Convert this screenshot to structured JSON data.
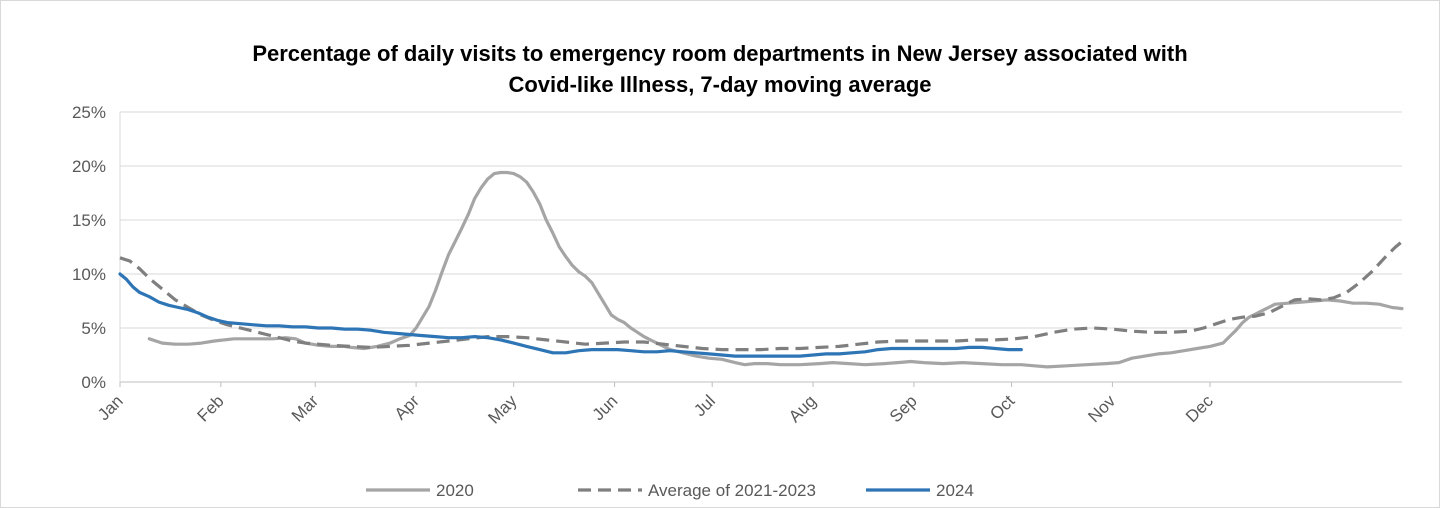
{
  "chart_data": {
    "type": "line",
    "title_line1": "Percentage of daily visits to emergency room departments in New Jersey associated with",
    "title_line2": "Covid-like Illness, 7-day moving average",
    "xlabel": "",
    "ylabel": "",
    "x_tick_labels": [
      "Jan",
      "Feb",
      "Mar",
      "Apr",
      "May",
      "Jun",
      "Jul",
      "Aug",
      "Sep",
      "Oct",
      "Nov",
      "Dec"
    ],
    "y_tick_labels": [
      "0%",
      "5%",
      "10%",
      "15%",
      "20%",
      "25%"
    ],
    "ylim": [
      0,
      25
    ],
    "xlim_day_of_year": [
      1,
      366
    ],
    "grid": "horizontal",
    "legend_position": "bottom",
    "series": [
      {
        "name": "2020",
        "style": "solid",
        "color": "#a5a5a5",
        "points": [
          [
            10,
            4.0
          ],
          [
            12,
            3.8
          ],
          [
            14,
            3.6
          ],
          [
            18,
            3.5
          ],
          [
            22,
            3.5
          ],
          [
            26,
            3.6
          ],
          [
            30,
            3.8
          ],
          [
            36,
            4.0
          ],
          [
            42,
            4.0
          ],
          [
            48,
            4.0
          ],
          [
            52,
            4.1
          ],
          [
            55,
            4.0
          ],
          [
            58,
            3.6
          ],
          [
            62,
            3.4
          ],
          [
            66,
            3.3
          ],
          [
            70,
            3.3
          ],
          [
            72,
            3.2
          ],
          [
            76,
            3.1
          ],
          [
            80,
            3.3
          ],
          [
            84,
            3.6
          ],
          [
            87,
            4.0
          ],
          [
            90,
            4.3
          ],
          [
            92,
            5.0
          ],
          [
            94,
            6.0
          ],
          [
            96,
            7.0
          ],
          [
            98,
            8.5
          ],
          [
            100,
            10.2
          ],
          [
            102,
            11.8
          ],
          [
            104,
            13.0
          ],
          [
            106,
            14.2
          ],
          [
            108,
            15.5
          ],
          [
            110,
            17.0
          ],
          [
            112,
            18.0
          ],
          [
            114,
            18.8
          ],
          [
            116,
            19.3
          ],
          [
            118,
            19.4
          ],
          [
            120,
            19.4
          ],
          [
            122,
            19.3
          ],
          [
            124,
            19.0
          ],
          [
            126,
            18.5
          ],
          [
            128,
            17.6
          ],
          [
            130,
            16.5
          ],
          [
            132,
            15.0
          ],
          [
            134,
            13.8
          ],
          [
            136,
            12.5
          ],
          [
            138,
            11.6
          ],
          [
            140,
            10.8
          ],
          [
            142,
            10.2
          ],
          [
            144,
            9.8
          ],
          [
            146,
            9.2
          ],
          [
            148,
            8.2
          ],
          [
            150,
            7.2
          ],
          [
            152,
            6.2
          ],
          [
            154,
            5.8
          ],
          [
            156,
            5.5
          ],
          [
            158,
            5.0
          ],
          [
            160,
            4.6
          ],
          [
            162,
            4.2
          ],
          [
            164,
            3.9
          ],
          [
            166,
            3.6
          ],
          [
            170,
            3.0
          ],
          [
            174,
            2.7
          ],
          [
            178,
            2.4
          ],
          [
            182,
            2.2
          ],
          [
            186,
            2.1
          ],
          [
            190,
            1.8
          ],
          [
            193,
            1.6
          ],
          [
            196,
            1.7
          ],
          [
            200,
            1.7
          ],
          [
            204,
            1.6
          ],
          [
            210,
            1.6
          ],
          [
            216,
            1.7
          ],
          [
            220,
            1.8
          ],
          [
            225,
            1.7
          ],
          [
            230,
            1.6
          ],
          [
            236,
            1.7
          ],
          [
            240,
            1.8
          ],
          [
            244,
            1.9
          ],
          [
            248,
            1.8
          ],
          [
            254,
            1.7
          ],
          [
            260,
            1.8
          ],
          [
            266,
            1.7
          ],
          [
            272,
            1.6
          ],
          [
            278,
            1.6
          ],
          [
            282,
            1.5
          ],
          [
            286,
            1.4
          ],
          [
            292,
            1.5
          ],
          [
            298,
            1.6
          ],
          [
            304,
            1.7
          ],
          [
            308,
            1.8
          ],
          [
            312,
            2.2
          ],
          [
            316,
            2.4
          ],
          [
            320,
            2.6
          ],
          [
            324,
            2.7
          ],
          [
            328,
            2.9
          ],
          [
            332,
            3.1
          ],
          [
            336,
            3.3
          ],
          [
            340,
            3.6
          ],
          [
            342,
            4.2
          ],
          [
            344,
            4.8
          ],
          [
            346,
            5.5
          ],
          [
            348,
            6.0
          ],
          [
            350,
            6.3
          ],
          [
            352,
            6.6
          ],
          [
            354,
            6.9
          ],
          [
            356,
            7.2
          ],
          [
            360,
            7.3
          ],
          [
            364,
            7.4
          ],
          [
            368,
            7.5
          ],
          [
            372,
            7.6
          ],
          [
            376,
            7.5
          ],
          [
            380,
            7.3
          ],
          [
            384,
            7.3
          ],
          [
            388,
            7.2
          ],
          [
            392,
            6.9
          ],
          [
            395,
            6.8
          ]
        ]
      },
      {
        "name": "Average of 2021-2023",
        "style": "dashed",
        "color": "#7f7f7f",
        "points": [
          [
            1,
            11.5
          ],
          [
            4,
            11.2
          ],
          [
            7,
            10.5
          ],
          [
            10,
            9.6
          ],
          [
            14,
            8.6
          ],
          [
            18,
            7.6
          ],
          [
            22,
            6.9
          ],
          [
            26,
            6.2
          ],
          [
            30,
            5.7
          ],
          [
            34,
            5.3
          ],
          [
            38,
            5.0
          ],
          [
            42,
            4.7
          ],
          [
            46,
            4.4
          ],
          [
            50,
            4.1
          ],
          [
            54,
            3.8
          ],
          [
            58,
            3.6
          ],
          [
            62,
            3.5
          ],
          [
            66,
            3.4
          ],
          [
            72,
            3.3
          ],
          [
            78,
            3.2
          ],
          [
            84,
            3.3
          ],
          [
            90,
            3.4
          ],
          [
            96,
            3.6
          ],
          [
            102,
            3.8
          ],
          [
            108,
            4.0
          ],
          [
            114,
            4.2
          ],
          [
            120,
            4.2
          ],
          [
            126,
            4.1
          ],
          [
            132,
            3.9
          ],
          [
            138,
            3.7
          ],
          [
            144,
            3.5
          ],
          [
            150,
            3.6
          ],
          [
            156,
            3.7
          ],
          [
            162,
            3.7
          ],
          [
            168,
            3.5
          ],
          [
            174,
            3.3
          ],
          [
            180,
            3.1
          ],
          [
            186,
            3.0
          ],
          [
            192,
            3.0
          ],
          [
            198,
            3.0
          ],
          [
            204,
            3.1
          ],
          [
            210,
            3.1
          ],
          [
            216,
            3.2
          ],
          [
            222,
            3.3
          ],
          [
            228,
            3.5
          ],
          [
            234,
            3.7
          ],
          [
            240,
            3.8
          ],
          [
            246,
            3.8
          ],
          [
            252,
            3.8
          ],
          [
            258,
            3.8
          ],
          [
            264,
            3.9
          ],
          [
            270,
            3.9
          ],
          [
            276,
            4.0
          ],
          [
            282,
            4.2
          ],
          [
            288,
            4.6
          ],
          [
            294,
            4.9
          ],
          [
            300,
            5.0
          ],
          [
            306,
            4.9
          ],
          [
            312,
            4.7
          ],
          [
            318,
            4.6
          ],
          [
            324,
            4.6
          ],
          [
            330,
            4.7
          ],
          [
            334,
            5.0
          ],
          [
            338,
            5.4
          ],
          [
            342,
            5.8
          ],
          [
            346,
            6.0
          ],
          [
            350,
            6.1
          ],
          [
            354,
            6.4
          ],
          [
            358,
            7.0
          ],
          [
            362,
            7.6
          ],
          [
            366,
            7.7
          ],
          [
            370,
            7.6
          ],
          [
            374,
            7.8
          ],
          [
            378,
            8.3
          ],
          [
            382,
            9.2
          ],
          [
            386,
            10.3
          ],
          [
            390,
            11.6
          ],
          [
            393,
            12.5
          ],
          [
            395,
            13.0
          ]
        ]
      },
      {
        "name": "2024",
        "style": "solid",
        "color": "#2e75b6",
        "points": [
          [
            1,
            10.0
          ],
          [
            3,
            9.5
          ],
          [
            5,
            8.8
          ],
          [
            7,
            8.3
          ],
          [
            10,
            7.9
          ],
          [
            13,
            7.4
          ],
          [
            16,
            7.1
          ],
          [
            19,
            6.9
          ],
          [
            22,
            6.7
          ],
          [
            25,
            6.4
          ],
          [
            28,
            6.0
          ],
          [
            31,
            5.7
          ],
          [
            34,
            5.5
          ],
          [
            38,
            5.4
          ],
          [
            42,
            5.3
          ],
          [
            46,
            5.2
          ],
          [
            50,
            5.2
          ],
          [
            54,
            5.1
          ],
          [
            58,
            5.1
          ],
          [
            62,
            5.0
          ],
          [
            66,
            5.0
          ],
          [
            70,
            4.9
          ],
          [
            74,
            4.9
          ],
          [
            78,
            4.8
          ],
          [
            82,
            4.6
          ],
          [
            86,
            4.5
          ],
          [
            90,
            4.4
          ],
          [
            94,
            4.3
          ],
          [
            98,
            4.2
          ],
          [
            102,
            4.1
          ],
          [
            106,
            4.1
          ],
          [
            110,
            4.2
          ],
          [
            114,
            4.1
          ],
          [
            118,
            3.9
          ],
          [
            122,
            3.6
          ],
          [
            126,
            3.3
          ],
          [
            130,
            3.0
          ],
          [
            134,
            2.7
          ],
          [
            138,
            2.7
          ],
          [
            142,
            2.9
          ],
          [
            146,
            3.0
          ],
          [
            150,
            3.0
          ],
          [
            154,
            3.0
          ],
          [
            158,
            2.9
          ],
          [
            162,
            2.8
          ],
          [
            166,
            2.8
          ],
          [
            170,
            2.9
          ],
          [
            174,
            2.8
          ],
          [
            178,
            2.7
          ],
          [
            182,
            2.6
          ],
          [
            186,
            2.5
          ],
          [
            190,
            2.4
          ],
          [
            194,
            2.4
          ],
          [
            198,
            2.4
          ],
          [
            202,
            2.4
          ],
          [
            206,
            2.4
          ],
          [
            210,
            2.4
          ],
          [
            214,
            2.5
          ],
          [
            218,
            2.6
          ],
          [
            222,
            2.6
          ],
          [
            226,
            2.7
          ],
          [
            230,
            2.8
          ],
          [
            234,
            3.0
          ],
          [
            238,
            3.1
          ],
          [
            242,
            3.1
          ],
          [
            246,
            3.1
          ],
          [
            250,
            3.1
          ],
          [
            254,
            3.1
          ],
          [
            258,
            3.1
          ],
          [
            262,
            3.2
          ],
          [
            266,
            3.2
          ],
          [
            270,
            3.1
          ],
          [
            274,
            3.0
          ],
          [
            278,
            3.0
          ]
        ]
      }
    ]
  }
}
